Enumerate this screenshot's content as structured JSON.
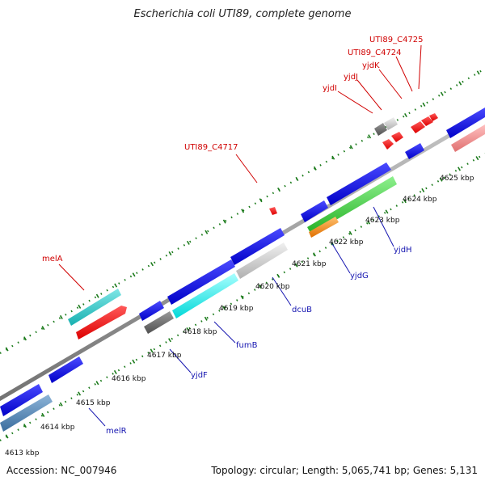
{
  "title": "Escherichia coli UTI89, complete genome",
  "accession_text": "Accession: NC_007946",
  "topology_text": "Topology: circular; Length: 5,065,741 bp; Genes: 5,131",
  "ticks": [
    "4613 kbp",
    "4614 kbp",
    "4615 kbp",
    "4616 kbp",
    "4617 kbp",
    "4618 kbp",
    "4619 kbp",
    "4620 kbp",
    "4621 kbp",
    "4622 kbp",
    "4623 kbp",
    "4624 kbp",
    "4625 kbp"
  ],
  "genes": {
    "melA": "melA",
    "UTI89_C4717": "UTI89_C4717",
    "yjdI": "yjdI",
    "yjdJ": "yjdJ",
    "yjdK": "yjdK",
    "UTI89_C4724": "UTI89_C4724",
    "UTI89_C4725": "UTI89_C4725",
    "melR": "melR",
    "yjdF": "yjdF",
    "fumB": "fumB",
    "dcuB": "dcuB",
    "yjdG": "yjdG",
    "yjdH": "yjdH"
  },
  "colors": {
    "backbone": "#8c8c8c",
    "tick": "#1a7a1a",
    "blue": "#0000e0",
    "red": "#ff0000",
    "cyan": "#00e6e6",
    "teal": "#1cc4c4",
    "gray_dark": "#6a6a6a",
    "gray_light": "#c8c8c8",
    "green": "#33cc33",
    "orange": "#ff8c00",
    "pink": "#f08080",
    "steel": "#4a7fb0",
    "red_label": "#d00000",
    "blue_label": "#1515b0"
  }
}
